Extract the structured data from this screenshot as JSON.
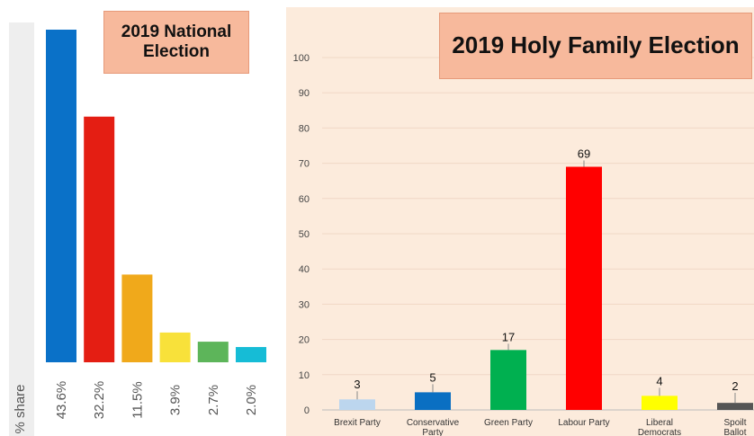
{
  "left_title": "2019 National Election",
  "right_title": "2019 Holy Family Election",
  "chart_data": [
    {
      "type": "bar",
      "title": "2019 National Election",
      "ylabel": "% share",
      "categories": [
        "43.6%",
        "32.2%",
        "11.5%",
        "3.9%",
        "2.7%",
        "2.0%"
      ],
      "values": [
        43.6,
        32.2,
        11.5,
        3.9,
        2.7,
        2.0
      ],
      "colors": [
        "#0a71c8",
        "#e41e13",
        "#f0a91b",
        "#f8e13a",
        "#5db55a",
        "#16bcd6"
      ],
      "grid": false,
      "legend": "none"
    },
    {
      "type": "bar",
      "title": "2019 Holy Family Election",
      "categories": [
        "Brexit Party",
        "Conservative Party",
        "Green Party",
        "Labour Party",
        "Liberal Democrats",
        "Spoilt Ballot"
      ],
      "values": [
        3,
        5,
        17,
        69,
        4,
        2
      ],
      "colors": [
        "#bcd6ee",
        "#0a6fc2",
        "#00b050",
        "#ff0000",
        "#ffff00",
        "#555555"
      ],
      "ylim": [
        0,
        100
      ],
      "yticks": [
        0,
        10,
        20,
        30,
        40,
        50,
        60,
        70,
        80,
        90,
        100
      ],
      "grid": true,
      "legend": "none"
    }
  ]
}
